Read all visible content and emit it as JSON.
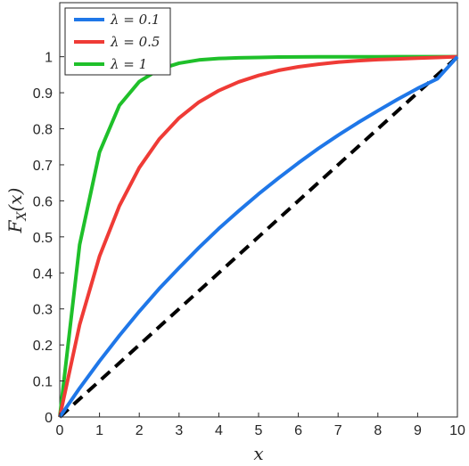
{
  "chart_data": {
    "type": "line",
    "title": "",
    "xlabel": "x",
    "ylabel": "F_X(x)",
    "ylabel_parts": {
      "base": "F",
      "sub": "X",
      "arg": "(x)"
    },
    "xlim": [
      0,
      10
    ],
    "ylim": [
      0,
      1.15
    ],
    "xticks": [
      0,
      1,
      2,
      3,
      4,
      5,
      6,
      7,
      8,
      9,
      10
    ],
    "yticks": [
      0,
      0.1,
      0.2,
      0.3,
      0.4,
      0.5,
      0.6,
      0.7,
      0.8,
      0.9,
      1
    ],
    "ytick_labels": [
      "0",
      "0.1",
      "0.2",
      "0.3",
      "0.4",
      "0.5",
      "0.6",
      "0.7",
      "0.8",
      "0.9",
      "1"
    ],
    "xtick_labels": [
      "0",
      "1",
      "2",
      "3",
      "4",
      "5",
      "6",
      "7",
      "8",
      "9",
      "10"
    ],
    "grid": false,
    "legend_position": "top-left",
    "x": [
      0,
      0.5,
      1,
      1.5,
      2,
      2.5,
      3,
      3.5,
      4,
      4.5,
      5,
      5.5,
      6,
      6.5,
      7,
      7.5,
      8,
      8.5,
      9,
      9.5,
      10
    ],
    "series": [
      {
        "name": "λ = 0.1",
        "color": "#1f77e8",
        "style": "solid",
        "values": [
          0,
          0.08,
          0.155,
          0.226,
          0.293,
          0.356,
          0.414,
          0.47,
          0.523,
          0.572,
          0.619,
          0.663,
          0.705,
          0.745,
          0.782,
          0.817,
          0.85,
          0.882,
          0.912,
          0.939,
          1.0
        ]
      },
      {
        "name": "λ = 0.5",
        "color": "#ef3b36",
        "style": "solid",
        "values": [
          0,
          0.256,
          0.446,
          0.586,
          0.692,
          0.771,
          0.83,
          0.874,
          0.906,
          0.93,
          0.948,
          0.962,
          0.972,
          0.979,
          0.985,
          0.989,
          0.992,
          0.994,
          0.996,
          0.998,
          1.0
        ]
      },
      {
        "name": "λ = 1",
        "color": "#1fc02a",
        "style": "solid",
        "values": [
          0,
          0.478,
          0.735,
          0.865,
          0.931,
          0.965,
          0.982,
          0.991,
          0.995,
          0.997,
          0.998,
          0.999,
          0.9994,
          0.9996,
          0.9998,
          0.9999,
          0.9999,
          1.0,
          1.0,
          1.0,
          1.0
        ]
      },
      {
        "name": "",
        "color": "#000000",
        "style": "dashed",
        "values": [
          0,
          0.05,
          0.1,
          0.15,
          0.2,
          0.25,
          0.3,
          0.35,
          0.4,
          0.45,
          0.5,
          0.55,
          0.6,
          0.65,
          0.7,
          0.75,
          0.8,
          0.85,
          0.9,
          0.95,
          1.0
        ]
      }
    ],
    "legend": [
      "λ = 0.1",
      "λ = 0.5",
      "λ = 1"
    ]
  }
}
